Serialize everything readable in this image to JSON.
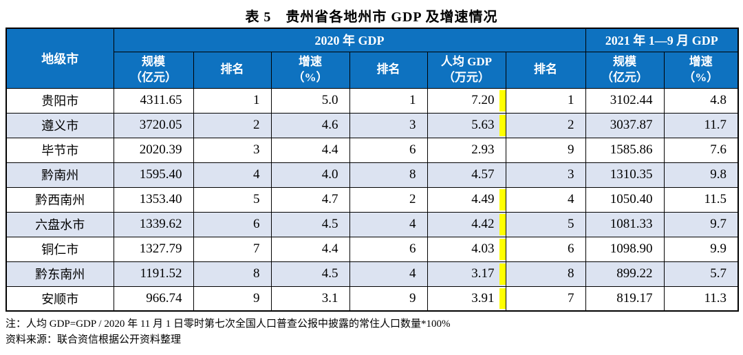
{
  "title": "表 5　贵州省各地州市 GDP 及增速情况",
  "colors": {
    "header_bg": "#0e72c0",
    "header_text": "#ffffff",
    "row_alt_bg": "#dce3f1",
    "highlight": "#ffff00",
    "border": "#000000"
  },
  "table": {
    "header": {
      "city": "地级市",
      "group_2020": "2020 年 GDP",
      "group_2021": "2021 年 1—9 月 GDP"
    },
    "sub_headers": [
      {
        "l1": "规模",
        "l2": "（亿元）"
      },
      {
        "l1": "排名",
        "l2": ""
      },
      {
        "l1": "增速",
        "l2": "（%）"
      },
      {
        "l1": "排名",
        "l2": ""
      },
      {
        "l1": "人均 GDP",
        "l2": "（万元）"
      },
      {
        "l1": "排名",
        "l2": ""
      },
      {
        "l1": "规模",
        "l2": "（亿元）"
      },
      {
        "l1": "增速",
        "l2": "（%）"
      }
    ],
    "rows": [
      {
        "city": "贵阳市",
        "gdp2020_scale": "4311.65",
        "gdp2020_rank": "1",
        "growth2020": "5.0",
        "growth2020_rank": "1",
        "per_capita_gdp": "7.20",
        "per_capita_rank": "1",
        "gdp2021_scale": "3102.44",
        "growth2021": "4.8",
        "highlight": true
      },
      {
        "city": "遵义市",
        "gdp2020_scale": "3720.05",
        "gdp2020_rank": "2",
        "growth2020": "4.6",
        "growth2020_rank": "3",
        "per_capita_gdp": "5.63",
        "per_capita_rank": "2",
        "gdp2021_scale": "3037.87",
        "growth2021": "11.7",
        "highlight": true
      },
      {
        "city": "毕节市",
        "gdp2020_scale": "2020.39",
        "gdp2020_rank": "3",
        "growth2020": "4.4",
        "growth2020_rank": "6",
        "per_capita_gdp": "2.93",
        "per_capita_rank": "9",
        "gdp2021_scale": "1585.86",
        "growth2021": "7.6",
        "highlight": false
      },
      {
        "city": "黔南州",
        "gdp2020_scale": "1595.40",
        "gdp2020_rank": "4",
        "growth2020": "4.0",
        "growth2020_rank": "8",
        "per_capita_gdp": "4.57",
        "per_capita_rank": "3",
        "gdp2021_scale": "1310.35",
        "growth2021": "9.8",
        "highlight": false
      },
      {
        "city": "黔西南州",
        "gdp2020_scale": "1353.40",
        "gdp2020_rank": "5",
        "growth2020": "4.7",
        "growth2020_rank": "2",
        "per_capita_gdp": "4.49",
        "per_capita_rank": "4",
        "gdp2021_scale": "1050.40",
        "growth2021": "11.5",
        "highlight": true
      },
      {
        "city": "六盘水市",
        "gdp2020_scale": "1339.62",
        "gdp2020_rank": "6",
        "growth2020": "4.5",
        "growth2020_rank": "4",
        "per_capita_gdp": "4.42",
        "per_capita_rank": "5",
        "gdp2021_scale": "1081.33",
        "growth2021": "9.7",
        "highlight": true
      },
      {
        "city": "铜仁市",
        "gdp2020_scale": "1327.79",
        "gdp2020_rank": "7",
        "growth2020": "4.4",
        "growth2020_rank": "6",
        "per_capita_gdp": "4.03",
        "per_capita_rank": "6",
        "gdp2021_scale": "1098.90",
        "growth2021": "9.9",
        "highlight": true
      },
      {
        "city": "黔东南州",
        "gdp2020_scale": "1191.52",
        "gdp2020_rank": "8",
        "growth2020": "4.5",
        "growth2020_rank": "4",
        "per_capita_gdp": "3.17",
        "per_capita_rank": "8",
        "gdp2021_scale": "899.22",
        "growth2021": "5.7",
        "highlight": true
      },
      {
        "city": "安顺市",
        "gdp2020_scale": "966.74",
        "gdp2020_rank": "9",
        "growth2020": "3.1",
        "growth2020_rank": "9",
        "per_capita_gdp": "3.91",
        "per_capita_rank": "7",
        "gdp2021_scale": "819.17",
        "growth2021": "11.3",
        "highlight": true
      }
    ]
  },
  "notes": {
    "note1": "注：人均 GDP=GDP / 2020 年 11 月 1 日零时第七次全国人口普查公报中披露的常住人口数量*100%",
    "source": "资料来源：联合资信根据公开资料整理"
  }
}
